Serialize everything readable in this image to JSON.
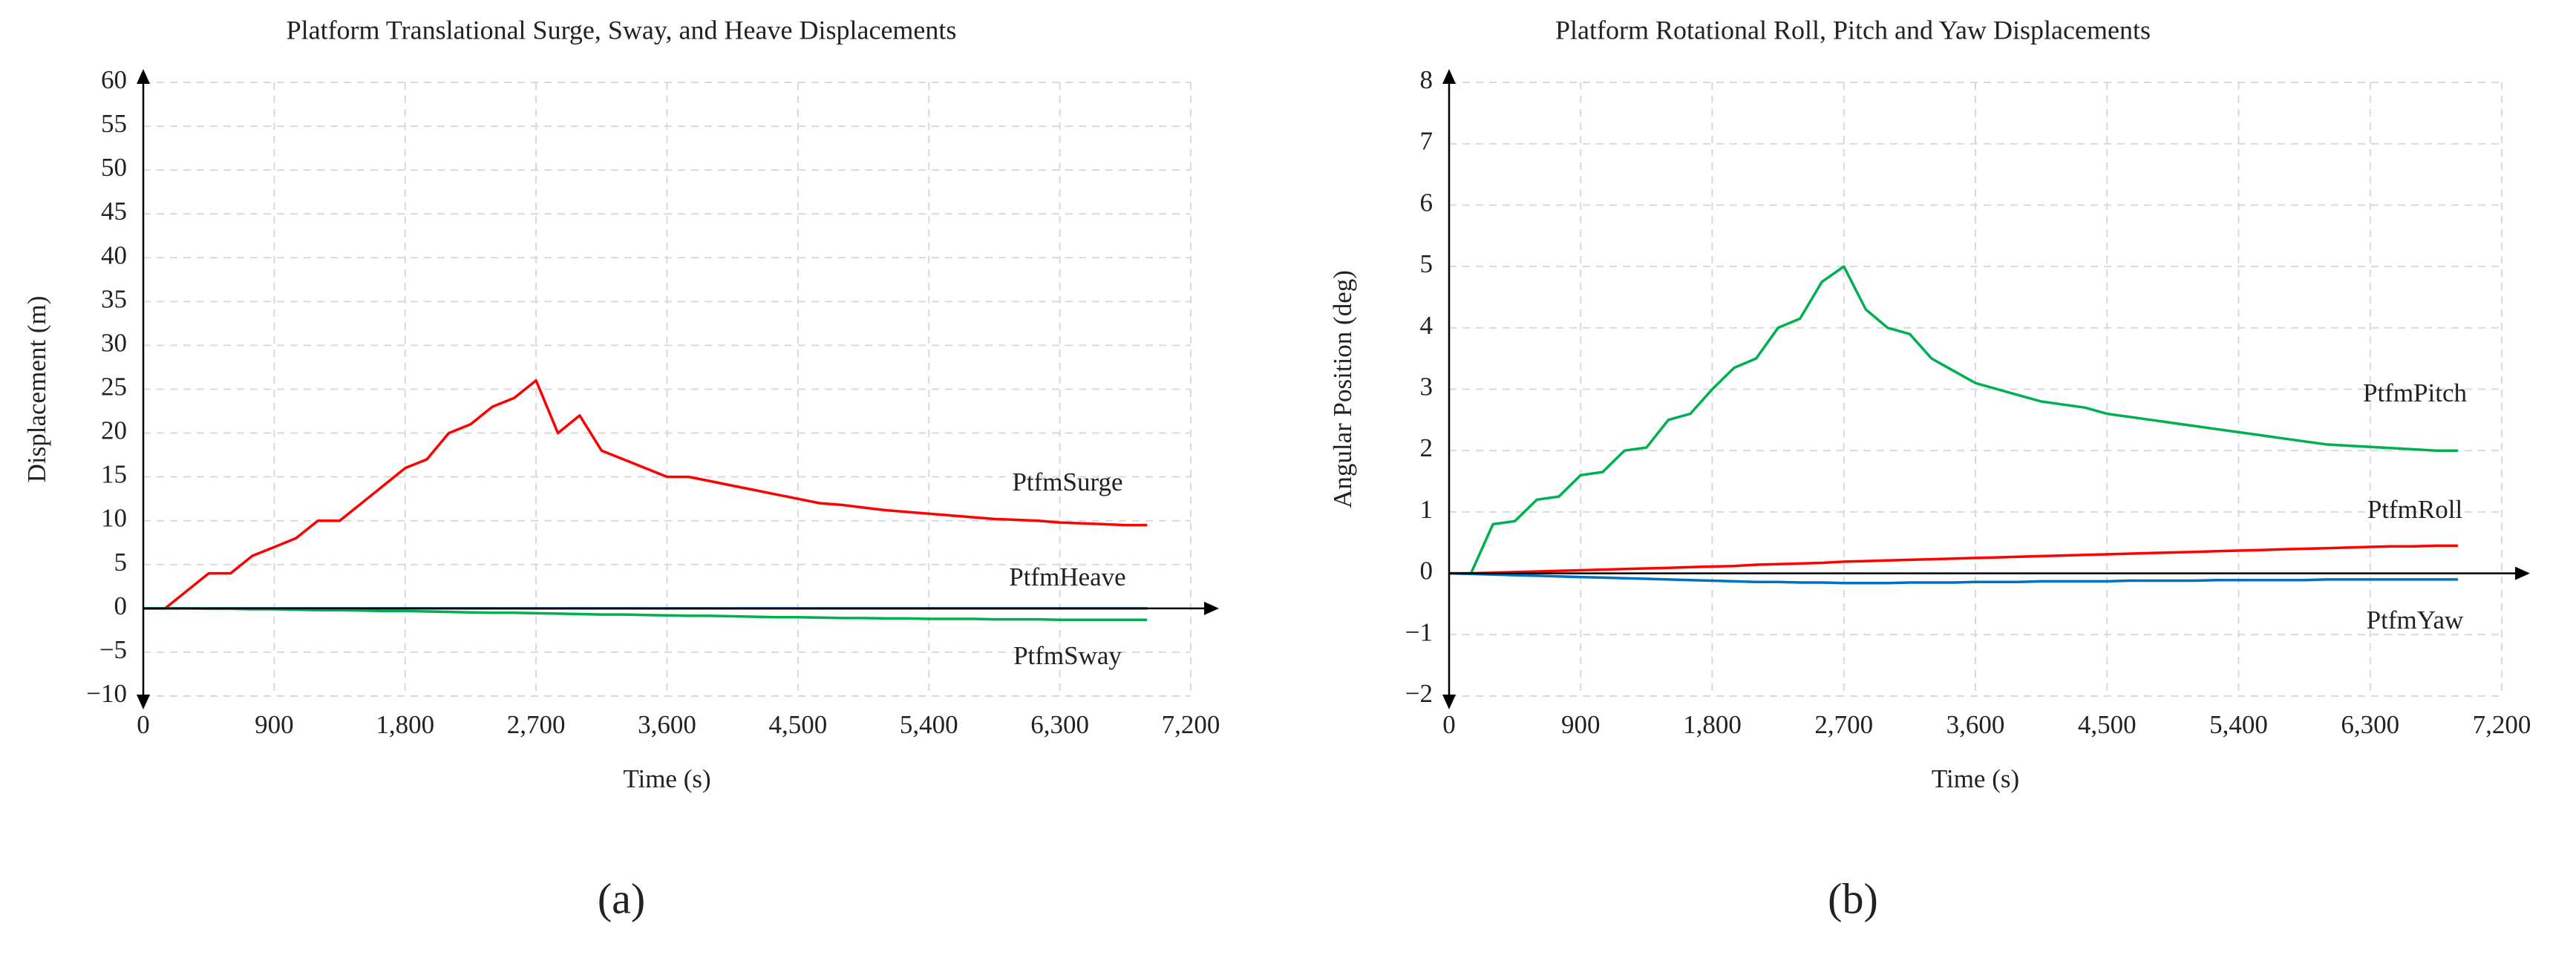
{
  "chart_data": [
    {
      "type": "line",
      "title": "Platform Translational Surge, Sway, and Heave Displacements",
      "caption": "(a)",
      "xlabel": "Time (s)",
      "ylabel": "Displacement (m)",
      "x": [
        0,
        150,
        300,
        450,
        600,
        750,
        900,
        1050,
        1200,
        1350,
        1500,
        1650,
        1800,
        1950,
        2100,
        2250,
        2400,
        2550,
        2700,
        2850,
        3000,
        3150,
        3300,
        3450,
        3600,
        3750,
        3900,
        4050,
        4200,
        4350,
        4500,
        4650,
        4800,
        4950,
        5100,
        5250,
        5400,
        5550,
        5700,
        5850,
        6000,
        6150,
        6300,
        6450,
        6600,
        6750,
        6900
      ],
      "xlim": [
        0,
        7200
      ],
      "xticks": [
        0,
        900,
        {
          "value": 1800,
          "label": "1,800"
        },
        {
          "value": 2700,
          "label": "2,700"
        },
        {
          "value": 3600,
          "label": "3,600"
        },
        {
          "value": 4500,
          "label": "4,500"
        },
        {
          "value": 5400,
          "label": "5,400"
        },
        {
          "value": 6300,
          "label": "6,300"
        },
        {
          "value": 7200,
          "label": "7,200"
        }
      ],
      "ylim": [
        -10,
        60
      ],
      "yticks": [
        {
          "value": -10,
          "label": "−10"
        },
        {
          "value": -5,
          "label": "−5"
        },
        0,
        5,
        10,
        15,
        20,
        25,
        30,
        35,
        40,
        45,
        50,
        55,
        60
      ],
      "grid": true,
      "series": [
        {
          "name": "PtfmSurge",
          "color": "#ff0000",
          "values": [
            0,
            0,
            2,
            4,
            4,
            6,
            7,
            8,
            10,
            10,
            12,
            14,
            16,
            17,
            20,
            21,
            23,
            24,
            26,
            20,
            22,
            18,
            17,
            16,
            15,
            15,
            14.5,
            14,
            13.5,
            13,
            12.5,
            12,
            11.8,
            11.5,
            11.2,
            11,
            10.8,
            10.6,
            10.4,
            10.2,
            10.1,
            10,
            9.8,
            9.7,
            9.6,
            9.5,
            9.5
          ]
        },
        {
          "name": "PtfmHeave",
          "color": "#0070c0",
          "values": [
            0,
            0,
            0,
            0,
            0,
            0,
            0,
            0,
            0,
            0,
            0,
            0,
            0,
            0,
            0,
            0,
            0,
            0,
            0,
            0,
            0,
            0,
            0,
            0,
            0,
            0,
            0,
            0,
            0,
            0,
            0,
            0,
            0,
            0,
            0,
            0,
            0,
            0,
            0,
            0,
            0,
            0,
            0,
            0,
            0,
            0,
            0
          ]
        },
        {
          "name": "PtfmSway",
          "color": "#00b050",
          "values": [
            0,
            0,
            0,
            -0.05,
            -0.05,
            -0.1,
            -0.1,
            -0.15,
            -0.2,
            -0.2,
            -0.25,
            -0.3,
            -0.3,
            -0.35,
            -0.4,
            -0.45,
            -0.5,
            -0.5,
            -0.55,
            -0.6,
            -0.65,
            -0.7,
            -0.7,
            -0.75,
            -0.8,
            -0.85,
            -0.85,
            -0.9,
            -0.95,
            -1,
            -1,
            -1.05,
            -1.1,
            -1.1,
            -1.15,
            -1.15,
            -1.2,
            -1.2,
            -1.2,
            -1.25,
            -1.25,
            -1.25,
            -1.3,
            -1.3,
            -1.3,
            -1.3,
            -1.3
          ]
        }
      ]
    },
    {
      "type": "line",
      "title": "Platform Rotational Roll, Pitch and Yaw Displacements",
      "caption": "(b)",
      "xlabel": "Time (s)",
      "ylabel": "Angular Position (deg)",
      "x": [
        0,
        150,
        300,
        450,
        600,
        750,
        900,
        1050,
        1200,
        1350,
        1500,
        1650,
        1800,
        1950,
        2100,
        2250,
        2400,
        2550,
        2700,
        2850,
        3000,
        3150,
        3300,
        3450,
        3600,
        3750,
        3900,
        4050,
        4200,
        4350,
        4500,
        4650,
        4800,
        4950,
        5100,
        5250,
        5400,
        5550,
        5700,
        5850,
        6000,
        6150,
        6300,
        6450,
        6600,
        6750,
        6900
      ],
      "xlim": [
        0,
        7200
      ],
      "xticks": [
        0,
        900,
        {
          "value": 1800,
          "label": "1,800"
        },
        {
          "value": 2700,
          "label": "2,700"
        },
        {
          "value": 3600,
          "label": "3,600"
        },
        {
          "value": 4500,
          "label": "4,500"
        },
        {
          "value": 5400,
          "label": "5,400"
        },
        {
          "value": 6300,
          "label": "6,300"
        },
        {
          "value": 7200,
          "label": "7,200"
        }
      ],
      "ylim": [
        -2,
        8
      ],
      "yticks": [
        {
          "value": -2,
          "label": "−2"
        },
        {
          "value": -1,
          "label": "−1"
        },
        0,
        1,
        2,
        3,
        4,
        5,
        6,
        7,
        8
      ],
      "grid": true,
      "series": [
        {
          "name": "PtfmPitch",
          "color": "#00b050",
          "values": [
            0,
            0,
            0.8,
            0.85,
            1.2,
            1.25,
            1.6,
            1.65,
            2,
            2.05,
            2.5,
            2.6,
            3,
            3.35,
            3.5,
            4,
            4.15,
            4.75,
            5,
            4.3,
            4,
            3.9,
            3.5,
            3.3,
            3.1,
            3,
            2.9,
            2.8,
            2.75,
            2.7,
            2.6,
            2.55,
            2.5,
            2.45,
            2.4,
            2.35,
            2.3,
            2.25,
            2.2,
            2.15,
            2.1,
            2.08,
            2.06,
            2.04,
            2.02,
            2,
            2
          ]
        },
        {
          "name": "PtfmRoll",
          "color": "#ff0000",
          "values": [
            0,
            0,
            0.01,
            0.02,
            0.03,
            0.04,
            0.05,
            0.06,
            0.07,
            0.08,
            0.09,
            0.1,
            0.11,
            0.12,
            0.14,
            0.15,
            0.16,
            0.17,
            0.19,
            0.2,
            0.21,
            0.22,
            0.23,
            0.24,
            0.25,
            0.26,
            0.27,
            0.28,
            0.29,
            0.3,
            0.31,
            0.32,
            0.33,
            0.34,
            0.35,
            0.36,
            0.37,
            0.38,
            0.39,
            0.4,
            0.41,
            0.42,
            0.43,
            0.44,
            0.44,
            0.45,
            0.45
          ]
        },
        {
          "name": "PtfmYaw",
          "color": "#0070c0",
          "values": [
            0,
            -0.01,
            -0.02,
            -0.03,
            -0.04,
            -0.05,
            -0.06,
            -0.07,
            -0.08,
            -0.09,
            -0.1,
            -0.11,
            -0.12,
            -0.13,
            -0.14,
            -0.14,
            -0.15,
            -0.15,
            -0.16,
            -0.16,
            -0.16,
            -0.15,
            -0.15,
            -0.15,
            -0.14,
            -0.14,
            -0.14,
            -0.13,
            -0.13,
            -0.13,
            -0.13,
            -0.12,
            -0.12,
            -0.12,
            -0.12,
            -0.11,
            -0.11,
            -0.11,
            -0.11,
            -0.11,
            -0.1,
            -0.1,
            -0.1,
            -0.1,
            -0.1,
            -0.1,
            -0.1
          ]
        }
      ]
    }
  ]
}
